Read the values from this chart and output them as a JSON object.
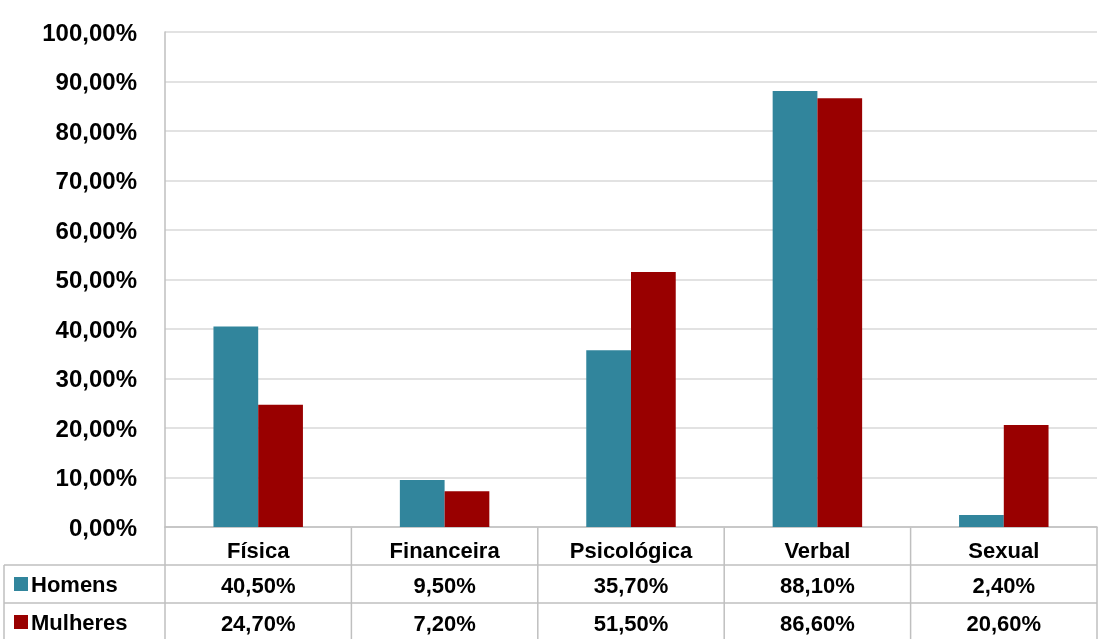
{
  "chart_data": {
    "type": "bar",
    "categories": [
      "Física",
      "Financeira",
      "Psicológica",
      "Verbal",
      "Sexual"
    ],
    "series": [
      {
        "name": "Homens",
        "color": "#31859c",
        "values": [
          40.5,
          9.5,
          35.7,
          88.1,
          2.4
        ],
        "value_labels": [
          "40,50%",
          "9,50%",
          "35,70%",
          "88,10%",
          "2,40%"
        ]
      },
      {
        "name": "Mulheres",
        "color": "#990000",
        "values": [
          24.7,
          7.2,
          51.5,
          86.6,
          20.6
        ],
        "value_labels": [
          "24,70%",
          "7,20%",
          "51,50%",
          "86,60%",
          "20,60%"
        ]
      }
    ],
    "ylim": [
      0,
      100
    ],
    "yticks": [
      {
        "value": 0,
        "label": "0,00%"
      },
      {
        "value": 10,
        "label": "10,00%"
      },
      {
        "value": 20,
        "label": "20,00%"
      },
      {
        "value": 30,
        "label": "30,00%"
      },
      {
        "value": 40,
        "label": "40,00%"
      },
      {
        "value": 50,
        "label": "50,00%"
      },
      {
        "value": 60,
        "label": "60,00%"
      },
      {
        "value": 70,
        "label": "70,00%"
      },
      {
        "value": 80,
        "label": "80,00%"
      },
      {
        "value": 90,
        "label": "90,00%"
      },
      {
        "value": 100,
        "label": "100,00%"
      }
    ],
    "grid": "y",
    "legend": "bottom left"
  }
}
